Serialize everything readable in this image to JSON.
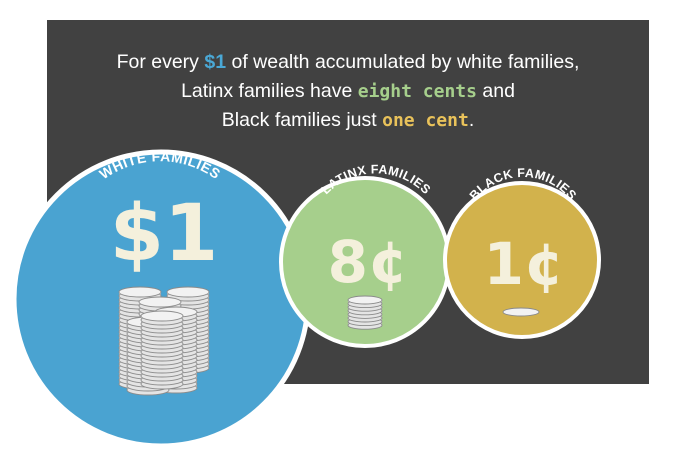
{
  "headline": {
    "line1_pre": "For every ",
    "line1_amount": "$1",
    "line1_post": " of wealth accumulated by white families,",
    "line2_pre": "Latinx families have ",
    "line2_amount": "eight cents",
    "line2_post": " and",
    "line3_pre": "Black families just ",
    "line3_amount": "one cent",
    "line3_post": "."
  },
  "groups": {
    "white": {
      "label": "WHITE FAMILIES",
      "value": "$1"
    },
    "latinx": {
      "label": "LATINX FAMILIES",
      "value": "8¢"
    },
    "black": {
      "label": "BLACK FAMILIES",
      "value": "1¢"
    }
  },
  "colors": {
    "panel": "#414141",
    "white_circle": "#4aa3d1",
    "latinx_circle": "#a6cf8c",
    "black_circle": "#d2b24c",
    "value_text": "#f4f0dc",
    "coin": "#e8e8e8"
  }
}
